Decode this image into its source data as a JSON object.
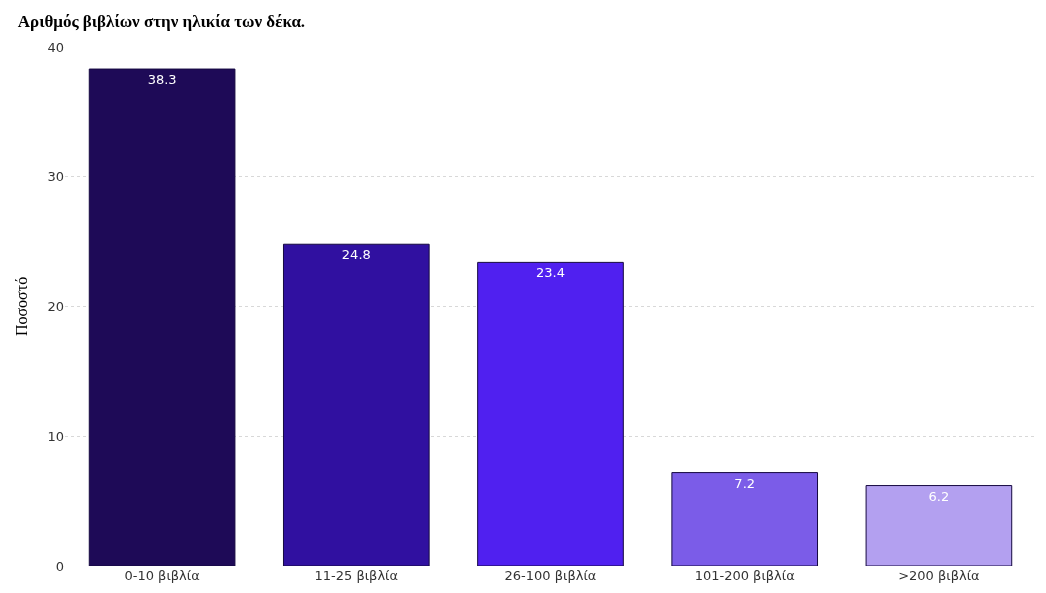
{
  "chart_data": {
    "type": "bar",
    "title": "Αριθμός βιβλίων στην ηλικία των δέκα.",
    "ylabel": "Ποσοστό",
    "categories": [
      "0-10 βιβλία",
      "11-25 βιβλία",
      "26-100 βιβλία",
      "101-200 βιβλία",
      ">200 βιβλία"
    ],
    "values": [
      38.3,
      24.8,
      23.4,
      7.2,
      6.2
    ],
    "colors": [
      "#1e0a57",
      "#3010a0",
      "#5020f0",
      "#7b5ce8",
      "#b3a0f0"
    ],
    "ylim": [
      0,
      40
    ],
    "yticks": [
      0,
      10,
      20,
      30,
      40
    ],
    "grid": "y",
    "data_labels": true,
    "legend": false
  }
}
